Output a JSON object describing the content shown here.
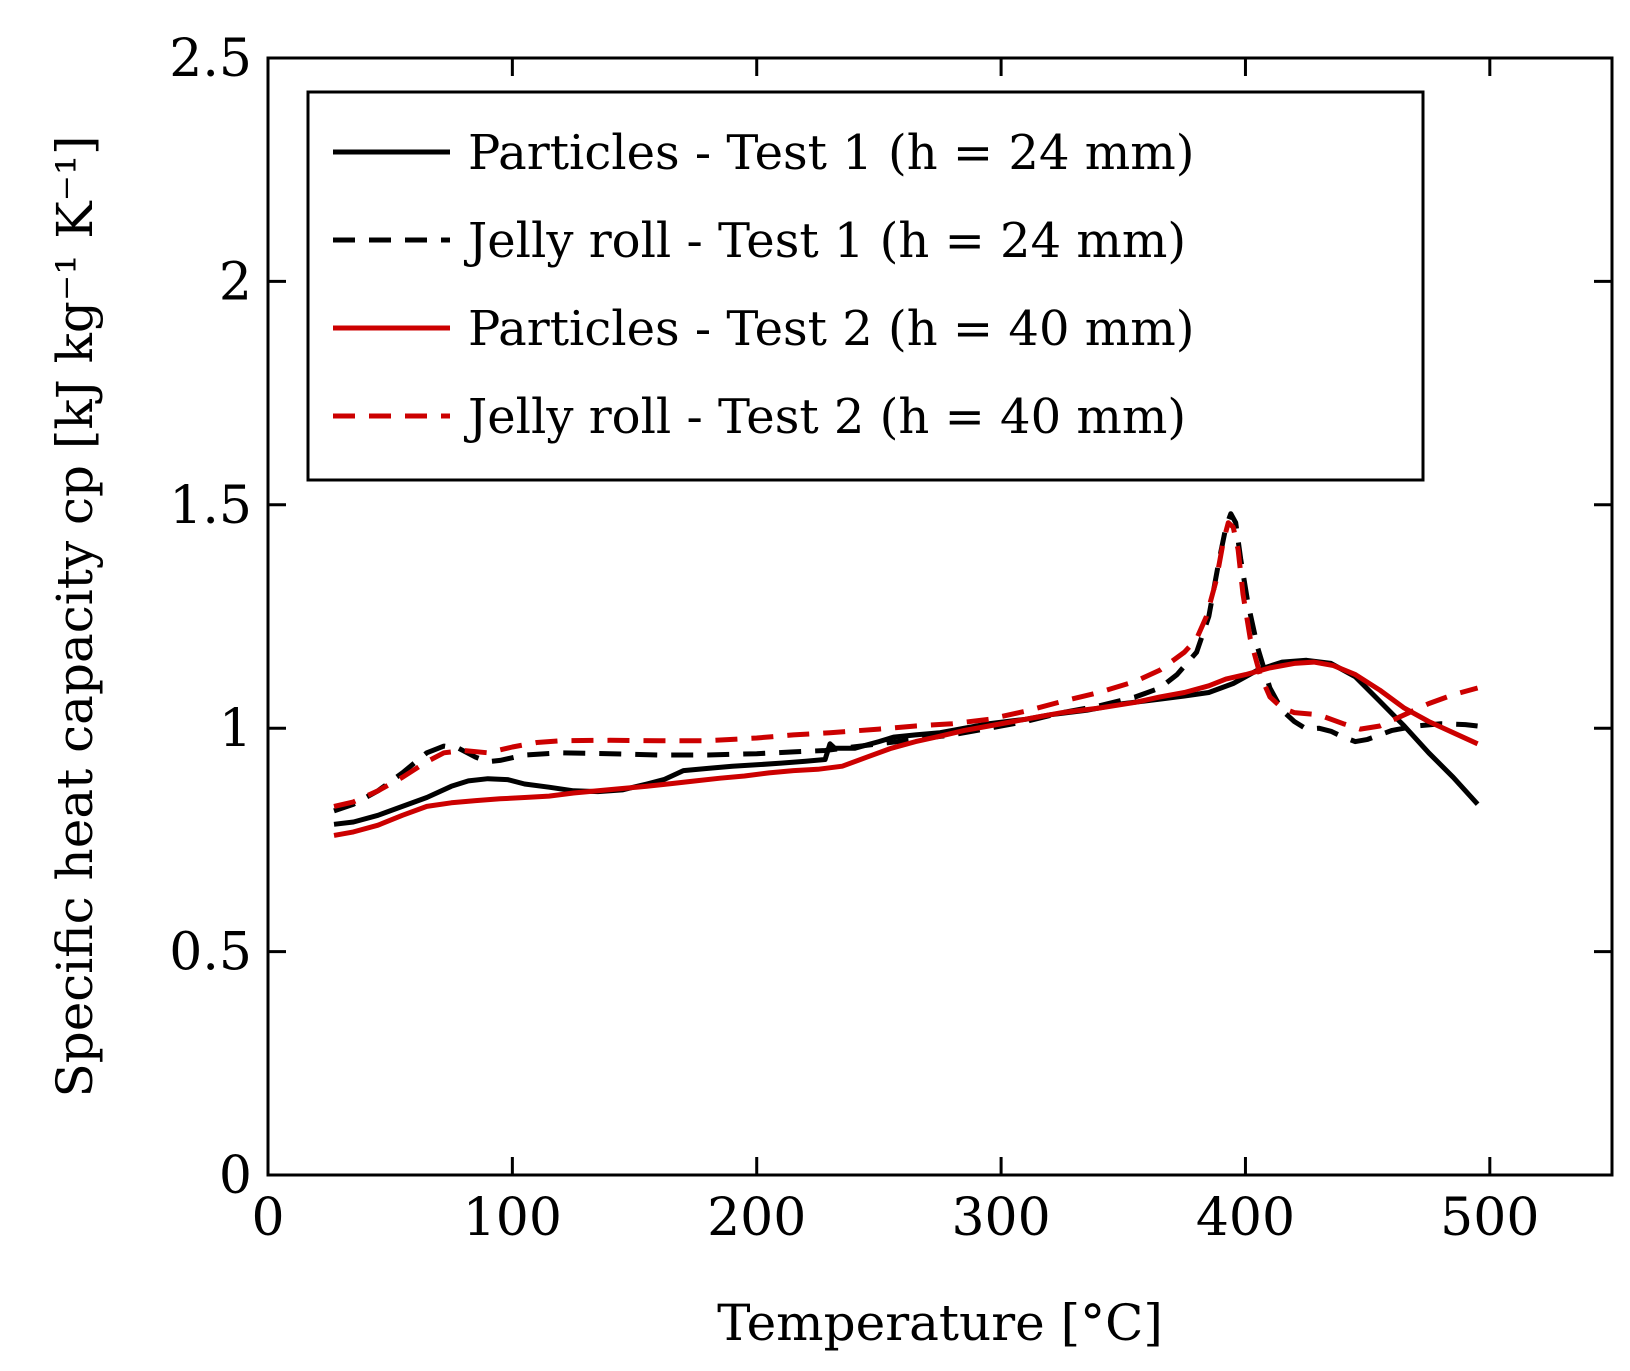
{
  "chart_data": {
    "type": "line",
    "title": "",
    "xlabel": "Temperature [°C]",
    "ylabel": "Specific heat capacity cp [kJ kg⁻¹ K⁻¹]",
    "xlim": [
      0,
      550
    ],
    "ylim": [
      0,
      2.5
    ],
    "xticks": [
      0,
      100,
      200,
      300,
      400,
      500
    ],
    "yticks": [
      0,
      0.5,
      1,
      1.5,
      2,
      2.5
    ],
    "xtick_labels": [
      "0",
      "100",
      "200",
      "300",
      "400",
      "500"
    ],
    "ytick_labels": [
      "0",
      "0.5",
      "1",
      "1.5",
      "2",
      "2.5"
    ],
    "grid": false,
    "legend_position": "top",
    "series": [
      {
        "name": "Particles - Test 1 (h = 24 mm)",
        "color": "#000000",
        "dash": "solid",
        "points": [
          [
            27,
            0.785
          ],
          [
            35,
            0.79
          ],
          [
            45,
            0.805
          ],
          [
            55,
            0.825
          ],
          [
            65,
            0.845
          ],
          [
            75,
            0.87
          ],
          [
            82,
            0.882
          ],
          [
            90,
            0.887
          ],
          [
            98,
            0.885
          ],
          [
            105,
            0.875
          ],
          [
            115,
            0.868
          ],
          [
            125,
            0.86
          ],
          [
            135,
            0.858
          ],
          [
            145,
            0.862
          ],
          [
            155,
            0.875
          ],
          [
            162,
            0.885
          ],
          [
            170,
            0.905
          ],
          [
            180,
            0.91
          ],
          [
            190,
            0.915
          ],
          [
            200,
            0.918
          ],
          [
            210,
            0.922
          ],
          [
            220,
            0.926
          ],
          [
            228,
            0.93
          ],
          [
            230,
            0.965
          ],
          [
            232,
            0.955
          ],
          [
            240,
            0.955
          ],
          [
            250,
            0.97
          ],
          [
            256,
            0.98
          ],
          [
            265,
            0.985
          ],
          [
            275,
            0.99
          ],
          [
            285,
            1.0
          ],
          [
            295,
            1.01
          ],
          [
            310,
            1.02
          ],
          [
            320,
            1.03
          ],
          [
            335,
            1.04
          ],
          [
            350,
            1.055
          ],
          [
            365,
            1.065
          ],
          [
            375,
            1.072
          ],
          [
            385,
            1.08
          ],
          [
            395,
            1.1
          ],
          [
            405,
            1.13
          ],
          [
            415,
            1.148
          ],
          [
            425,
            1.152
          ],
          [
            435,
            1.145
          ],
          [
            445,
            1.115
          ],
          [
            455,
            1.06
          ],
          [
            465,
            1.005
          ],
          [
            475,
            0.945
          ],
          [
            485,
            0.89
          ],
          [
            495,
            0.83
          ]
        ]
      },
      {
        "name": "Jelly roll - Test 1 (h = 24 mm)",
        "color": "#000000",
        "dash": "dashed",
        "points": [
          [
            27,
            0.815
          ],
          [
            35,
            0.83
          ],
          [
            45,
            0.86
          ],
          [
            55,
            0.9
          ],
          [
            65,
            0.945
          ],
          [
            72,
            0.96
          ],
          [
            78,
            0.955
          ],
          [
            85,
            0.935
          ],
          [
            90,
            0.925
          ],
          [
            95,
            0.928
          ],
          [
            105,
            0.94
          ],
          [
            120,
            0.945
          ],
          [
            140,
            0.943
          ],
          [
            160,
            0.94
          ],
          [
            180,
            0.94
          ],
          [
            200,
            0.943
          ],
          [
            215,
            0.947
          ],
          [
            228,
            0.95
          ],
          [
            235,
            0.955
          ],
          [
            250,
            0.965
          ],
          [
            265,
            0.975
          ],
          [
            280,
            0.985
          ],
          [
            295,
            1.0
          ],
          [
            310,
            1.015
          ],
          [
            325,
            1.035
          ],
          [
            340,
            1.05
          ],
          [
            355,
            1.07
          ],
          [
            365,
            1.09
          ],
          [
            372,
            1.12
          ],
          [
            380,
            1.17
          ],
          [
            385,
            1.25
          ],
          [
            389,
            1.37
          ],
          [
            392,
            1.45
          ],
          [
            394,
            1.48
          ],
          [
            396,
            1.46
          ],
          [
            398,
            1.38
          ],
          [
            401,
            1.28
          ],
          [
            405,
            1.18
          ],
          [
            410,
            1.09
          ],
          [
            415,
            1.04
          ],
          [
            420,
            1.015
          ],
          [
            425,
            0.998
          ],
          [
            430,
            1.0
          ],
          [
            435,
            0.993
          ],
          [
            440,
            0.98
          ],
          [
            445,
            0.97
          ],
          [
            450,
            0.975
          ],
          [
            460,
            0.995
          ],
          [
            470,
            1.005
          ],
          [
            480,
            1.01
          ],
          [
            490,
            1.008
          ],
          [
            495,
            1.005
          ]
        ]
      },
      {
        "name": "Particles - Test 2 (h = 40 mm)",
        "color": "#cc0000",
        "dash": "solid",
        "points": [
          [
            27,
            0.76
          ],
          [
            35,
            0.768
          ],
          [
            45,
            0.783
          ],
          [
            55,
            0.805
          ],
          [
            65,
            0.825
          ],
          [
            75,
            0.833
          ],
          [
            85,
            0.838
          ],
          [
            95,
            0.842
          ],
          [
            105,
            0.845
          ],
          [
            115,
            0.848
          ],
          [
            125,
            0.855
          ],
          [
            135,
            0.86
          ],
          [
            145,
            0.865
          ],
          [
            155,
            0.87
          ],
          [
            165,
            0.876
          ],
          [
            175,
            0.882
          ],
          [
            185,
            0.888
          ],
          [
            195,
            0.893
          ],
          [
            205,
            0.9
          ],
          [
            215,
            0.905
          ],
          [
            225,
            0.908
          ],
          [
            235,
            0.915
          ],
          [
            245,
            0.935
          ],
          [
            255,
            0.955
          ],
          [
            265,
            0.97
          ],
          [
            275,
            0.982
          ],
          [
            285,
            0.995
          ],
          [
            295,
            1.005
          ],
          [
            305,
            1.015
          ],
          [
            315,
            1.025
          ],
          [
            325,
            1.035
          ],
          [
            340,
            1.045
          ],
          [
            355,
            1.058
          ],
          [
            365,
            1.07
          ],
          [
            375,
            1.08
          ],
          [
            385,
            1.095
          ],
          [
            392,
            1.11
          ],
          [
            400,
            1.12
          ],
          [
            410,
            1.135
          ],
          [
            420,
            1.145
          ],
          [
            428,
            1.148
          ],
          [
            436,
            1.14
          ],
          [
            445,
            1.12
          ],
          [
            455,
            1.085
          ],
          [
            465,
            1.045
          ],
          [
            475,
            1.015
          ],
          [
            485,
            0.99
          ],
          [
            495,
            0.965
          ]
        ]
      },
      {
        "name": "Jelly roll - Test 2 (h = 40 mm)",
        "color": "#cc0000",
        "dash": "dashed",
        "points": [
          [
            27,
            0.825
          ],
          [
            35,
            0.835
          ],
          [
            45,
            0.86
          ],
          [
            55,
            0.89
          ],
          [
            65,
            0.925
          ],
          [
            72,
            0.945
          ],
          [
            80,
            0.95
          ],
          [
            90,
            0.945
          ],
          [
            100,
            0.958
          ],
          [
            110,
            0.968
          ],
          [
            120,
            0.972
          ],
          [
            140,
            0.973
          ],
          [
            160,
            0.972
          ],
          [
            180,
            0.972
          ],
          [
            200,
            0.978
          ],
          [
            215,
            0.985
          ],
          [
            230,
            0.99
          ],
          [
            250,
            0.998
          ],
          [
            265,
            1.005
          ],
          [
            280,
            1.01
          ],
          [
            295,
            1.02
          ],
          [
            310,
            1.038
          ],
          [
            325,
            1.06
          ],
          [
            340,
            1.08
          ],
          [
            355,
            1.105
          ],
          [
            365,
            1.13
          ],
          [
            375,
            1.17
          ],
          [
            380,
            1.2
          ],
          [
            384,
            1.25
          ],
          [
            388,
            1.33
          ],
          [
            391,
            1.42
          ],
          [
            393,
            1.46
          ],
          [
            395,
            1.45
          ],
          [
            397,
            1.4
          ],
          [
            399,
            1.3
          ],
          [
            402,
            1.2
          ],
          [
            406,
            1.12
          ],
          [
            410,
            1.07
          ],
          [
            415,
            1.045
          ],
          [
            420,
            1.035
          ],
          [
            430,
            1.03
          ],
          [
            440,
            1.01
          ],
          [
            447,
            0.998
          ],
          [
            455,
            1.005
          ],
          [
            465,
            1.03
          ],
          [
            475,
            1.055
          ],
          [
            485,
            1.075
          ],
          [
            495,
            1.09
          ]
        ]
      }
    ]
  }
}
